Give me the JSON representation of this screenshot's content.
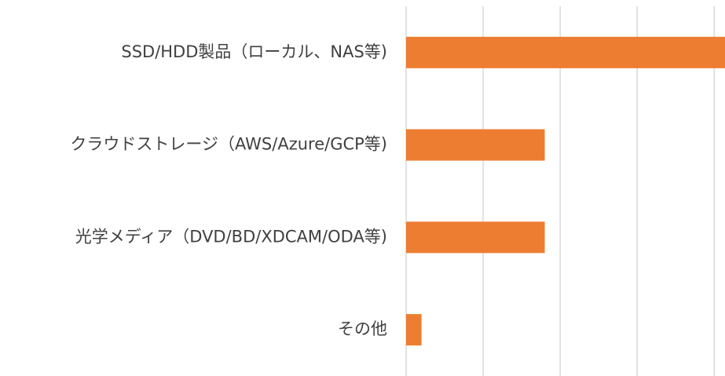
{
  "chart_data": {
    "type": "hbar",
    "categories": [
      "SSD/HDD製品（ローカル、NAS等)",
      "クラウドストレージ（AWS/Azure/GCP等)",
      "光学メディア（DVD/BD/XDCAM/ODA等)",
      "その他"
    ],
    "values": [
      4.5,
      1.8,
      1.8,
      0.2
    ],
    "color": "#ed7d31",
    "xlim": [
      0,
      4.14
    ],
    "xticks": [
      0,
      1,
      2,
      3,
      4
    ],
    "grid": true
  }
}
